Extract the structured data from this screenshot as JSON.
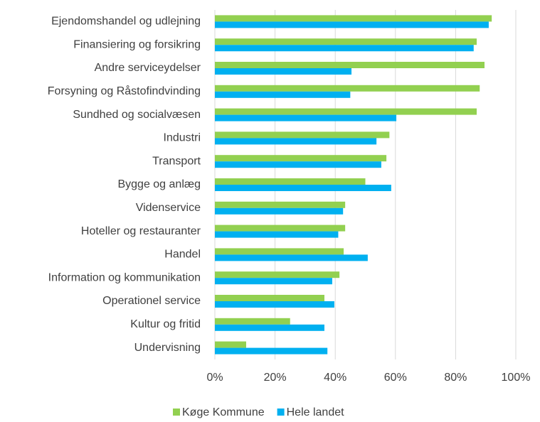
{
  "chart_data": {
    "type": "barh",
    "categories": [
      "Ejendomshandel og udlejning",
      "Finansiering og forsikring",
      "Andre serviceydelser",
      "Forsyning og Råstofindvinding",
      "Sundhed og socialvæsen",
      "Industri",
      "Transport",
      "Bygge og anlæg",
      "Videnservice",
      "Hoteller og restauranter",
      "Handel",
      "Information og kommunikation",
      "Operationel service",
      "Kultur og fritid",
      "Undervisning"
    ],
    "series": [
      {
        "name": "Køge Kommune",
        "color": "#92d050",
        "values": [
          92,
          87,
          89.6,
          88,
          87,
          58,
          57,
          50,
          43.3,
          43.3,
          42.8,
          41.4,
          36.4,
          25,
          10.4
        ]
      },
      {
        "name": "Hele landet",
        "color": "#00b0f0",
        "values": [
          91,
          86,
          45.4,
          45,
          60.3,
          53.7,
          55.3,
          58.6,
          42.6,
          41,
          50.8,
          39,
          39.7,
          36.4,
          37.4
        ]
      }
    ],
    "xlim": [
      0,
      100
    ],
    "xticks": [
      {
        "value": 0,
        "label": "0%"
      },
      {
        "value": 20,
        "label": "20%"
      },
      {
        "value": 40,
        "label": "40%"
      },
      {
        "value": 60,
        "label": "60%"
      },
      {
        "value": 80,
        "label": "80%"
      },
      {
        "value": 100,
        "label": "100%"
      }
    ],
    "grid": true,
    "legend": "bottom"
  }
}
